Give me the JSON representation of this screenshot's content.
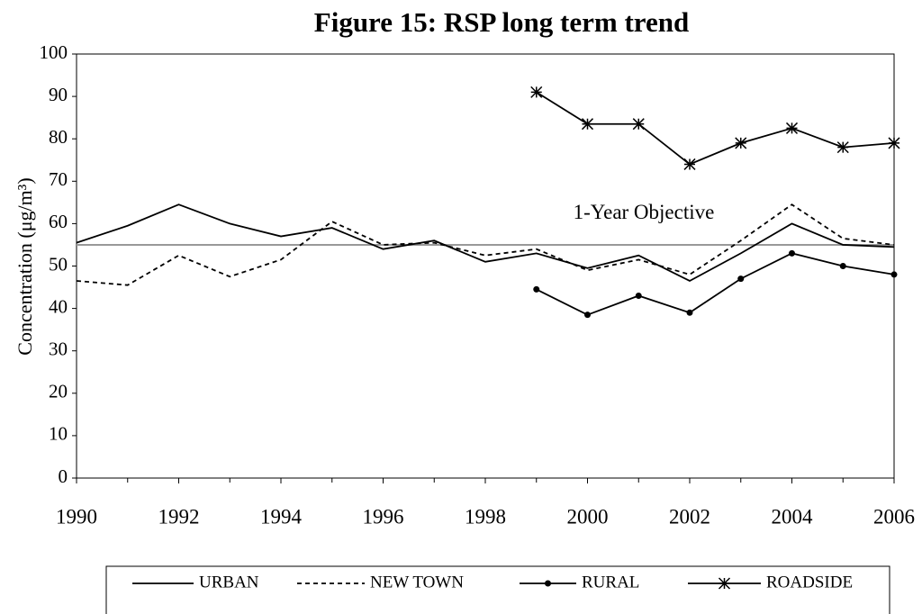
{
  "chart_data": {
    "type": "line",
    "title": "Figure 15: RSP long term trend",
    "y_label": "Concentration (μg/m³)",
    "x": [
      1990,
      1991,
      1992,
      1993,
      1994,
      1995,
      1996,
      1997,
      1998,
      1999,
      2000,
      2001,
      2002,
      2003,
      2004,
      2005,
      2006
    ],
    "series": [
      {
        "name": "URBAN",
        "color": "#000000",
        "dash": "solid",
        "marker": "none",
        "values": [
          55.5,
          59.5,
          64.5,
          60,
          57,
          59,
          54,
          56,
          51,
          53,
          49.5,
          52.5,
          46.5,
          53,
          60,
          55,
          54.5
        ]
      },
      {
        "name": "NEW TOWN",
        "color": "#000000",
        "dash": "dashed",
        "marker": "none",
        "values": [
          46.5,
          45.5,
          52.5,
          47.5,
          51.5,
          60.5,
          55,
          55.5,
          52.5,
          54,
          49,
          51.5,
          48,
          56,
          64.5,
          56.5,
          55
        ]
      },
      {
        "name": "RURAL",
        "color": "#000000",
        "dash": "solid",
        "marker": "circle",
        "values": [
          null,
          null,
          null,
          null,
          null,
          null,
          null,
          null,
          null,
          44.5,
          38.5,
          43,
          39,
          47,
          53,
          50,
          48
        ]
      },
      {
        "name": "ROADSIDE",
        "color": "#000000",
        "dash": "solid",
        "marker": "star",
        "values": [
          null,
          null,
          null,
          null,
          null,
          null,
          null,
          null,
          null,
          91,
          83.5,
          83.5,
          74,
          79,
          82.5,
          78,
          79
        ]
      }
    ],
    "objective": {
      "value": 55,
      "label": "1-Year Objective",
      "color": "#999999"
    },
    "xlim": [
      1990,
      2006
    ],
    "xticks": [
      1990,
      1992,
      1994,
      1996,
      1998,
      2000,
      2002,
      2004,
      2006
    ],
    "ylim": [
      0,
      100
    ],
    "yticks": [
      0,
      10,
      20,
      30,
      40,
      50,
      60,
      70,
      80,
      90,
      100
    ],
    "grid": false,
    "legend": "bottom"
  }
}
